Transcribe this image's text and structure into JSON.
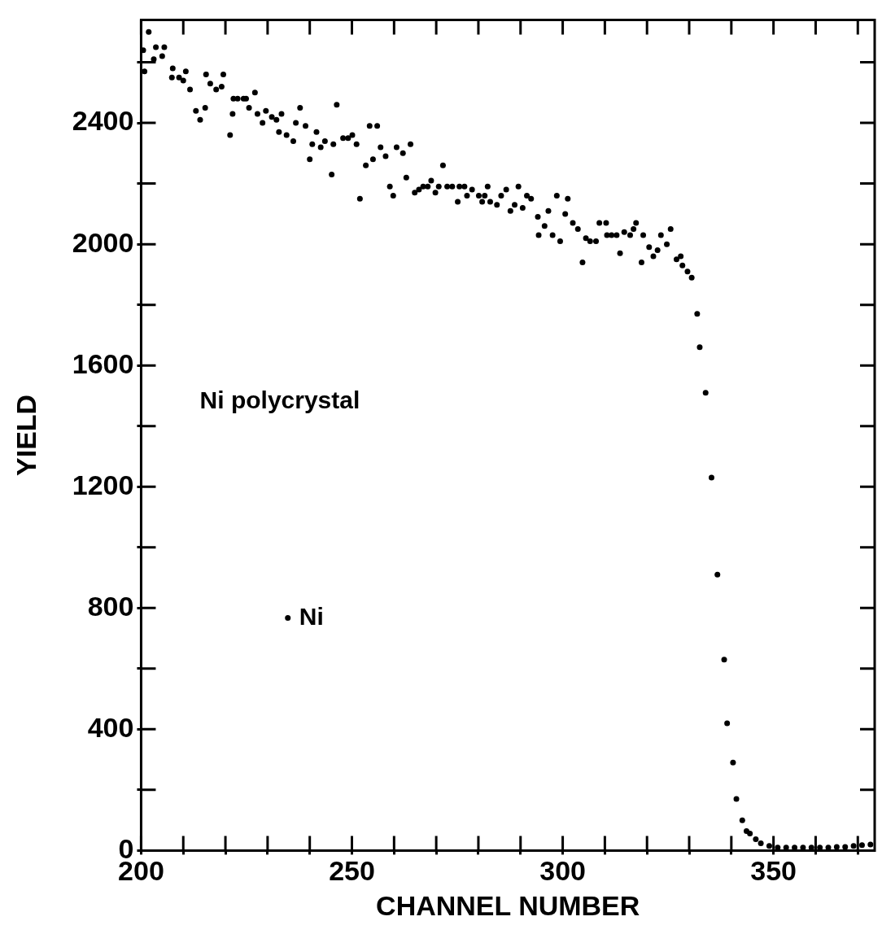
{
  "chart_data": {
    "type": "scatter",
    "xlabel": "CHANNEL NUMBER",
    "ylabel": "YIELD",
    "annotations": [
      "Ni polycrystal"
    ],
    "xlim": [
      200,
      374
    ],
    "xticks": [
      200,
      {
        "value": 210,
        "label": null
      },
      {
        "value": 220,
        "label": null
      },
      {
        "value": 230,
        "label": null
      },
      {
        "value": 240,
        "label": null
      },
      250,
      {
        "value": 260,
        "label": null
      },
      {
        "value": 270,
        "label": null
      },
      {
        "value": 280,
        "label": null
      },
      {
        "value": 290,
        "label": null
      },
      300,
      {
        "value": 310,
        "label": null
      },
      {
        "value": 320,
        "label": null
      },
      {
        "value": 330,
        "label": null
      },
      {
        "value": 340,
        "label": null
      },
      350,
      {
        "value": 360,
        "label": null
      },
      {
        "value": 370,
        "label": null
      }
    ],
    "ylim": [
      0,
      2740
    ],
    "yticks": [
      0,
      {
        "value": 200,
        "label": null
      },
      400,
      {
        "value": 600,
        "label": null
      },
      800,
      {
        "value": 1000,
        "label": null
      },
      1200,
      {
        "value": 1400,
        "label": null
      },
      1600,
      {
        "value": 1800,
        "label": null
      },
      2000,
      {
        "value": 2200,
        "label": null
      },
      2400,
      {
        "value": 2600,
        "label": null
      }
    ],
    "grid": false,
    "legend": "left",
    "marker": "circle",
    "series": [
      {
        "name": "Ni",
        "color": "#000000",
        "x": [
          200.5,
          200.8,
          201.8,
          203,
          203.5,
          205,
          205.5,
          207.3,
          207.5,
          209,
          210,
          210.6,
          211.6,
          213,
          214,
          215.2,
          215.4,
          216.4,
          217.8,
          219.1,
          219.5,
          221.1,
          221.7,
          221.9,
          222.9,
          224.3,
          224.9,
          225.6,
          227,
          227.6,
          228.8,
          229.6,
          231,
          232.1,
          232.7,
          233.3,
          234.5,
          236.1,
          236.7,
          237.7,
          239,
          240,
          240.6,
          241.6,
          242.6,
          243.6,
          245.2,
          245.6,
          246.4,
          247.9,
          249.1,
          250.1,
          251.1,
          251.9,
          253.3,
          254.2,
          255,
          256,
          256.8,
          258,
          259,
          259.8,
          260.6,
          262.1,
          262.9,
          263.9,
          264.9,
          265.9,
          266.9,
          268,
          268.8,
          269.8,
          270.6,
          271.6,
          272.6,
          273.8,
          275.1,
          275.5,
          276.7,
          277.3,
          278.5,
          280.1,
          280.9,
          281.5,
          282.2,
          282.8,
          284.4,
          285.4,
          286.6,
          287.6,
          288.6,
          289.5,
          290.5,
          291.5,
          292.5,
          294.1,
          294.3,
          295.7,
          296.6,
          297.6,
          298.6,
          299.4,
          300.6,
          301.2,
          302.4,
          303.6,
          304.7,
          305.5,
          306.5,
          307.9,
          308.7,
          310.3,
          310.5,
          311.6,
          312.8,
          313.6,
          314.6,
          316,
          316.8,
          317.4,
          318.7,
          319.1,
          320.5,
          321.5,
          322.5,
          323.3,
          324.7,
          325.6,
          327,
          328,
          328.4,
          329.6,
          330.6,
          331.9,
          332.5,
          333.9,
          335.3,
          336.7,
          338.3,
          339,
          340.4,
          341.2,
          342.6,
          343.6,
          344.4,
          345.8,
          347,
          349,
          351,
          353,
          355,
          357,
          359,
          361,
          363,
          365,
          367,
          369,
          371,
          373
        ],
        "values": [
          2640,
          2570,
          2700,
          2610,
          2650,
          2620,
          2650,
          2550,
          2580,
          2550,
          2540,
          2570,
          2510,
          2440,
          2410,
          2450,
          2560,
          2530,
          2510,
          2520,
          2560,
          2360,
          2430,
          2480,
          2480,
          2480,
          2480,
          2450,
          2500,
          2430,
          2400,
          2440,
          2420,
          2410,
          2370,
          2430,
          2360,
          2340,
          2400,
          2450,
          2390,
          2280,
          2330,
          2370,
          2320,
          2340,
          2230,
          2330,
          2460,
          2350,
          2350,
          2360,
          2330,
          2150,
          2260,
          2390,
          2280,
          2390,
          2320,
          2290,
          2190,
          2160,
          2320,
          2300,
          2220,
          2330,
          2170,
          2180,
          2190,
          2190,
          2210,
          2170,
          2190,
          2260,
          2190,
          2190,
          2140,
          2190,
          2190,
          2160,
          2180,
          2160,
          2140,
          2160,
          2190,
          2140,
          2130,
          2160,
          2180,
          2110,
          2130,
          2190,
          2120,
          2160,
          2150,
          2090,
          2030,
          2060,
          2110,
          2030,
          2160,
          2010,
          2100,
          2150,
          2070,
          2050,
          1940,
          2020,
          2010,
          2010,
          2070,
          2070,
          2030,
          2030,
          2030,
          1970,
          2040,
          2030,
          2050,
          2070,
          1940,
          2030,
          1990,
          1960,
          1980,
          2030,
          2000,
          2050,
          1950,
          1960,
          1930,
          1910,
          1890,
          1770,
          1660,
          1510,
          1230,
          910,
          630,
          420,
          290,
          170,
          100,
          64,
          56,
          37,
          24,
          15,
          10,
          10,
          10,
          10,
          10,
          10,
          10,
          12,
          12,
          15,
          18,
          20
        ]
      }
    ]
  }
}
